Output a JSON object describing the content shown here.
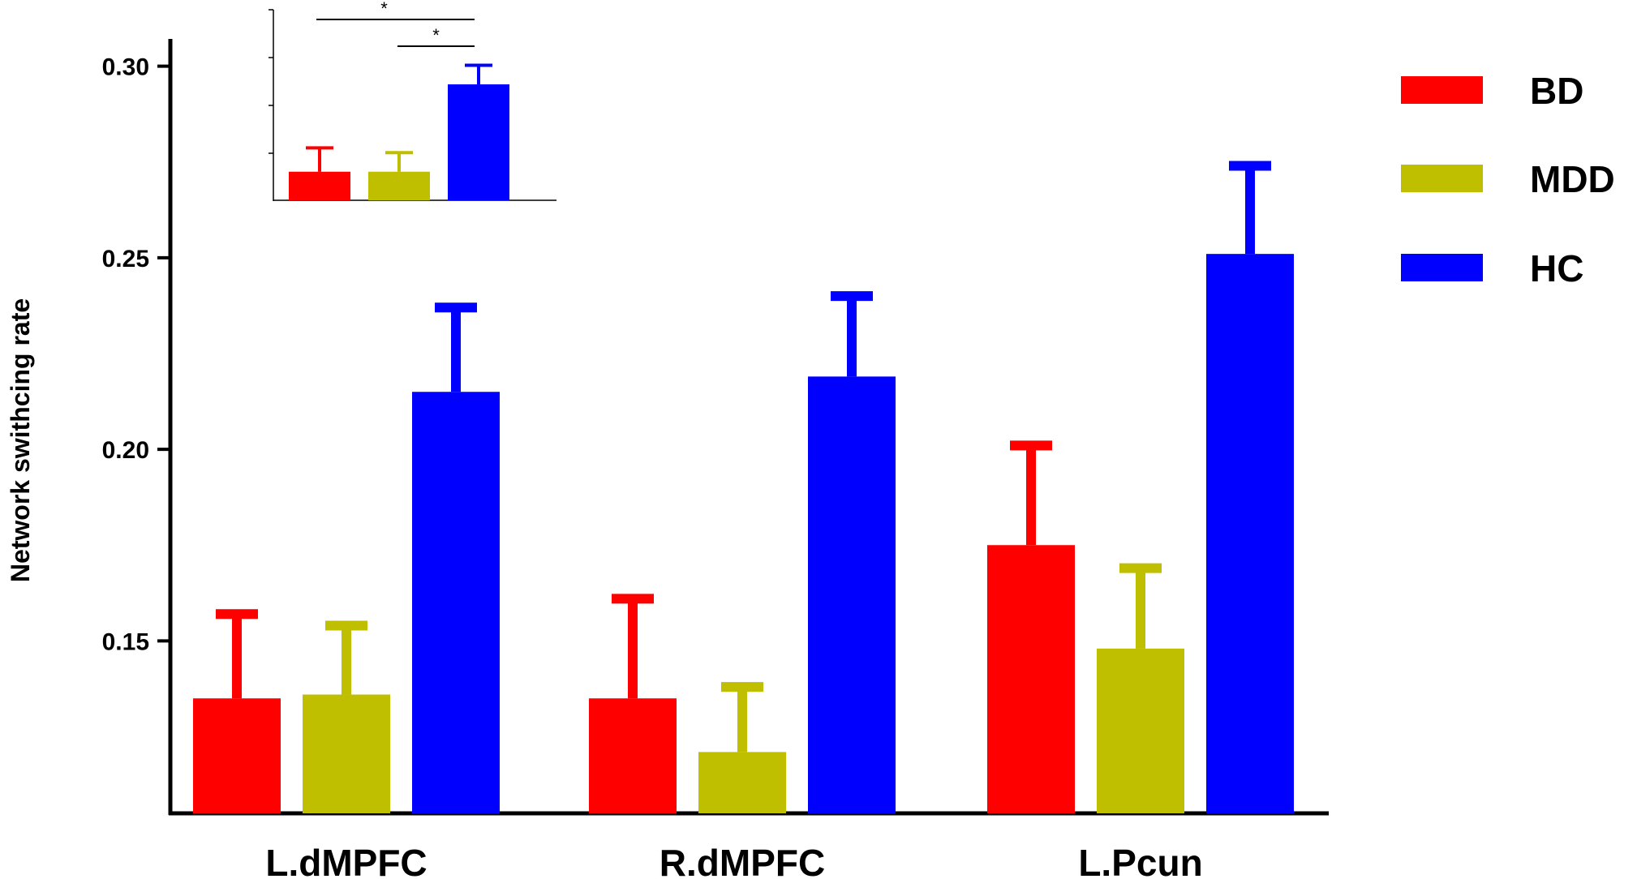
{
  "chart_data": {
    "type": "bar",
    "title": "",
    "xlabel": "",
    "ylabel": "Network swithcing rate",
    "ylim": [
      0.105,
      0.305
    ],
    "yticks": [
      "0.15",
      "0.20",
      "0.25",
      "0.30"
    ],
    "categories": [
      "L.dMPFC",
      "R.dMPFC",
      "L.Pcun"
    ],
    "series": [
      {
        "name": "BD",
        "color": "#ff0000",
        "values": [
          0.135,
          0.135,
          0.175
        ],
        "errors": [
          0.022,
          0.026,
          0.026
        ]
      },
      {
        "name": "MDD",
        "color": "#bfbf00",
        "values": [
          0.136,
          0.121,
          0.148
        ],
        "errors": [
          0.018,
          0.017,
          0.021
        ]
      },
      {
        "name": "HC",
        "color": "#0000ff",
        "values": [
          0.215,
          0.219,
          0.251
        ],
        "errors": [
          0.022,
          0.021,
          0.023
        ]
      }
    ],
    "legend": {
      "position": "top-right"
    },
    "grid": false,
    "inset": {
      "type": "bar",
      "series_names": [
        "BD",
        "MDD",
        "HC"
      ],
      "colors": [
        "#ff0000",
        "#bfbf00",
        "#0000ff"
      ],
      "values": [
        0.148,
        0.148,
        0.203
      ],
      "errors": [
        0.015,
        0.012,
        0.012
      ],
      "ylim": [
        0.13,
        0.25
      ],
      "significance": [
        {
          "from": 0,
          "to": 2,
          "label": "*"
        },
        {
          "from": 1,
          "to": 2,
          "label": "*"
        }
      ]
    }
  }
}
